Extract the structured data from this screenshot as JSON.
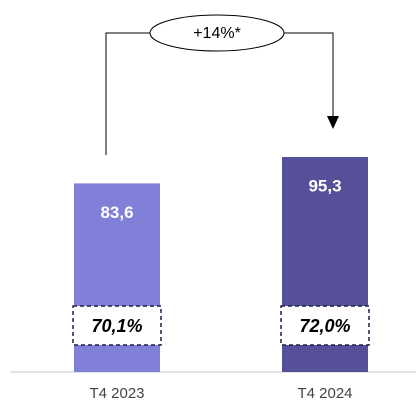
{
  "chart_data": {
    "type": "bar",
    "categories": [
      "T4 2023",
      "T4 2024"
    ],
    "values": [
      83.6,
      95.3
    ],
    "value_labels": [
      "83,6",
      "95,3"
    ],
    "colors": [
      "#8180d9",
      "#56509a"
    ],
    "share_labels": [
      "70,1%",
      "72,0%"
    ],
    "annotation": "+14%*"
  }
}
